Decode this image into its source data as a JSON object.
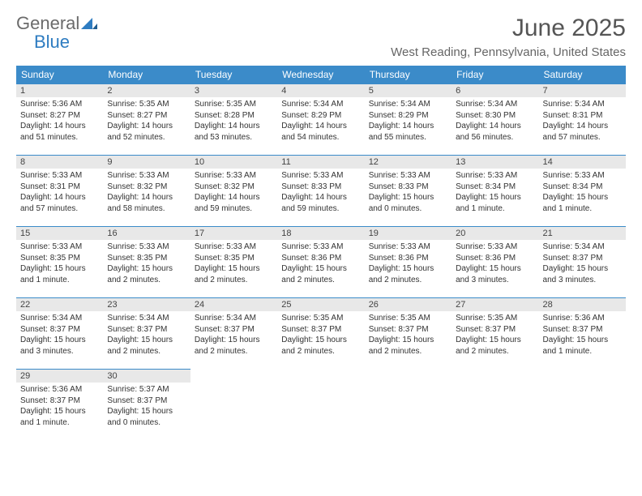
{
  "brand": {
    "name1": "General",
    "name2": "Blue"
  },
  "title": "June 2025",
  "location": "West Reading, Pennsylvania, United States",
  "colors": {
    "header_bg": "#3b8bc9",
    "header_text": "#ffffff",
    "daynum_bg": "#e8e8e8",
    "row_border": "#3b8bc9",
    "body_text": "#333333",
    "brand_gray": "#6b6b6b",
    "brand_blue": "#2e7cc1"
  },
  "weekdays": [
    "Sunday",
    "Monday",
    "Tuesday",
    "Wednesday",
    "Thursday",
    "Friday",
    "Saturday"
  ],
  "weeks": [
    [
      {
        "n": "1",
        "sr": "Sunrise: 5:36 AM",
        "ss": "Sunset: 8:27 PM",
        "d1": "Daylight: 14 hours",
        "d2": "and 51 minutes."
      },
      {
        "n": "2",
        "sr": "Sunrise: 5:35 AM",
        "ss": "Sunset: 8:27 PM",
        "d1": "Daylight: 14 hours",
        "d2": "and 52 minutes."
      },
      {
        "n": "3",
        "sr": "Sunrise: 5:35 AM",
        "ss": "Sunset: 8:28 PM",
        "d1": "Daylight: 14 hours",
        "d2": "and 53 minutes."
      },
      {
        "n": "4",
        "sr": "Sunrise: 5:34 AM",
        "ss": "Sunset: 8:29 PM",
        "d1": "Daylight: 14 hours",
        "d2": "and 54 minutes."
      },
      {
        "n": "5",
        "sr": "Sunrise: 5:34 AM",
        "ss": "Sunset: 8:29 PM",
        "d1": "Daylight: 14 hours",
        "d2": "and 55 minutes."
      },
      {
        "n": "6",
        "sr": "Sunrise: 5:34 AM",
        "ss": "Sunset: 8:30 PM",
        "d1": "Daylight: 14 hours",
        "d2": "and 56 minutes."
      },
      {
        "n": "7",
        "sr": "Sunrise: 5:34 AM",
        "ss": "Sunset: 8:31 PM",
        "d1": "Daylight: 14 hours",
        "d2": "and 57 minutes."
      }
    ],
    [
      {
        "n": "8",
        "sr": "Sunrise: 5:33 AM",
        "ss": "Sunset: 8:31 PM",
        "d1": "Daylight: 14 hours",
        "d2": "and 57 minutes."
      },
      {
        "n": "9",
        "sr": "Sunrise: 5:33 AM",
        "ss": "Sunset: 8:32 PM",
        "d1": "Daylight: 14 hours",
        "d2": "and 58 minutes."
      },
      {
        "n": "10",
        "sr": "Sunrise: 5:33 AM",
        "ss": "Sunset: 8:32 PM",
        "d1": "Daylight: 14 hours",
        "d2": "and 59 minutes."
      },
      {
        "n": "11",
        "sr": "Sunrise: 5:33 AM",
        "ss": "Sunset: 8:33 PM",
        "d1": "Daylight: 14 hours",
        "d2": "and 59 minutes."
      },
      {
        "n": "12",
        "sr": "Sunrise: 5:33 AM",
        "ss": "Sunset: 8:33 PM",
        "d1": "Daylight: 15 hours",
        "d2": "and 0 minutes."
      },
      {
        "n": "13",
        "sr": "Sunrise: 5:33 AM",
        "ss": "Sunset: 8:34 PM",
        "d1": "Daylight: 15 hours",
        "d2": "and 1 minute."
      },
      {
        "n": "14",
        "sr": "Sunrise: 5:33 AM",
        "ss": "Sunset: 8:34 PM",
        "d1": "Daylight: 15 hours",
        "d2": "and 1 minute."
      }
    ],
    [
      {
        "n": "15",
        "sr": "Sunrise: 5:33 AM",
        "ss": "Sunset: 8:35 PM",
        "d1": "Daylight: 15 hours",
        "d2": "and 1 minute."
      },
      {
        "n": "16",
        "sr": "Sunrise: 5:33 AM",
        "ss": "Sunset: 8:35 PM",
        "d1": "Daylight: 15 hours",
        "d2": "and 2 minutes."
      },
      {
        "n": "17",
        "sr": "Sunrise: 5:33 AM",
        "ss": "Sunset: 8:35 PM",
        "d1": "Daylight: 15 hours",
        "d2": "and 2 minutes."
      },
      {
        "n": "18",
        "sr": "Sunrise: 5:33 AM",
        "ss": "Sunset: 8:36 PM",
        "d1": "Daylight: 15 hours",
        "d2": "and 2 minutes."
      },
      {
        "n": "19",
        "sr": "Sunrise: 5:33 AM",
        "ss": "Sunset: 8:36 PM",
        "d1": "Daylight: 15 hours",
        "d2": "and 2 minutes."
      },
      {
        "n": "20",
        "sr": "Sunrise: 5:33 AM",
        "ss": "Sunset: 8:36 PM",
        "d1": "Daylight: 15 hours",
        "d2": "and 3 minutes."
      },
      {
        "n": "21",
        "sr": "Sunrise: 5:34 AM",
        "ss": "Sunset: 8:37 PM",
        "d1": "Daylight: 15 hours",
        "d2": "and 3 minutes."
      }
    ],
    [
      {
        "n": "22",
        "sr": "Sunrise: 5:34 AM",
        "ss": "Sunset: 8:37 PM",
        "d1": "Daylight: 15 hours",
        "d2": "and 3 minutes."
      },
      {
        "n": "23",
        "sr": "Sunrise: 5:34 AM",
        "ss": "Sunset: 8:37 PM",
        "d1": "Daylight: 15 hours",
        "d2": "and 2 minutes."
      },
      {
        "n": "24",
        "sr": "Sunrise: 5:34 AM",
        "ss": "Sunset: 8:37 PM",
        "d1": "Daylight: 15 hours",
        "d2": "and 2 minutes."
      },
      {
        "n": "25",
        "sr": "Sunrise: 5:35 AM",
        "ss": "Sunset: 8:37 PM",
        "d1": "Daylight: 15 hours",
        "d2": "and 2 minutes."
      },
      {
        "n": "26",
        "sr": "Sunrise: 5:35 AM",
        "ss": "Sunset: 8:37 PM",
        "d1": "Daylight: 15 hours",
        "d2": "and 2 minutes."
      },
      {
        "n": "27",
        "sr": "Sunrise: 5:35 AM",
        "ss": "Sunset: 8:37 PM",
        "d1": "Daylight: 15 hours",
        "d2": "and 2 minutes."
      },
      {
        "n": "28",
        "sr": "Sunrise: 5:36 AM",
        "ss": "Sunset: 8:37 PM",
        "d1": "Daylight: 15 hours",
        "d2": "and 1 minute."
      }
    ],
    [
      {
        "n": "29",
        "sr": "Sunrise: 5:36 AM",
        "ss": "Sunset: 8:37 PM",
        "d1": "Daylight: 15 hours",
        "d2": "and 1 minute."
      },
      {
        "n": "30",
        "sr": "Sunrise: 5:37 AM",
        "ss": "Sunset: 8:37 PM",
        "d1": "Daylight: 15 hours",
        "d2": "and 0 minutes."
      },
      null,
      null,
      null,
      null,
      null
    ]
  ]
}
